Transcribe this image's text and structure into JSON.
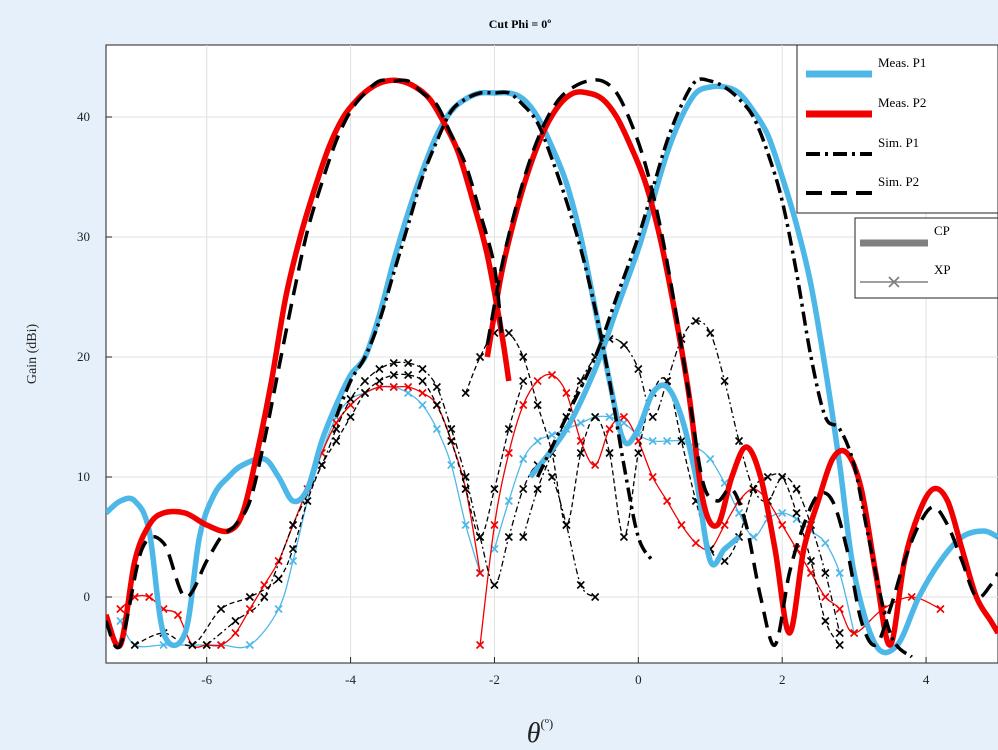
{
  "chart_data": {
    "type": "line",
    "title": "Cut Phi = 0º",
    "xlabel": "θ",
    "xlabel_unit": "(º)",
    "ylabel": "Gain (dBi)",
    "xlim": [
      -7.4,
      5
    ],
    "ylim": [
      -5.5,
      46
    ],
    "x_ticks": [
      -6,
      -4,
      -2,
      0,
      2,
      4
    ],
    "y_ticks": [
      0,
      10,
      20,
      30,
      40
    ],
    "grid": true,
    "legend_placement": "top-right",
    "legend": [
      "Meas. P1",
      "Meas. P2",
      "Sim. P1",
      "Sim. P2"
    ],
    "legend2": [
      "CP",
      "XP"
    ],
    "colors": {
      "meas_p1": "#4db8e8",
      "meas_p2": "#f20000",
      "sim": "#000000",
      "legend2": "#808080",
      "background": "#e6f0fa",
      "axes_bg": "#ffffff",
      "grid": "#e0e0e0"
    },
    "series": [
      {
        "name": "Meas. P1",
        "beam": 1,
        "kind": "CP",
        "color": "#4db8e8",
        "style": "solid",
        "x": [
          -7.4,
          -7.2,
          -7.0,
          -6.8,
          -6.6,
          -6.3,
          -6.1,
          -5.9,
          -5.7,
          -5.5,
          -5.2,
          -5.0,
          -4.8,
          -4.6,
          -4.4,
          -4.2,
          -4.0,
          -3.8,
          -3.6,
          -3.4,
          -3.2,
          -3.0,
          -2.8,
          -2.6,
          -2.4,
          -2.2,
          -2.0,
          -1.8,
          -1.6,
          -1.4,
          -1.2,
          -1.0,
          -0.8,
          -0.6,
          -0.4,
          -0.2,
          0.0,
          0.2,
          0.4,
          0.6,
          0.8,
          1.0,
          1.2,
          1.4
        ],
        "y": [
          7.0,
          8.0,
          8.0,
          5.5,
          -3.0,
          -3.0,
          5.0,
          8.5,
          10.0,
          11.0,
          11.5,
          10.0,
          8.0,
          9.0,
          13.0,
          16.0,
          18.5,
          20.0,
          23.5,
          28.0,
          32.0,
          35.5,
          38.5,
          40.5,
          41.5,
          42.0,
          42.0,
          42.0,
          41.5,
          40.0,
          37.5,
          34.5,
          30.0,
          24.0,
          18.0,
          13.0,
          14.0,
          17.0,
          17.5,
          15.0,
          10.0,
          3.0,
          4.0,
          5.0
        ]
      },
      {
        "name": "Meas. P1",
        "beam": 2,
        "kind": "CP",
        "color": "#4db8e8",
        "style": "solid",
        "x": [
          -1.5,
          -1.0,
          -0.6,
          -0.3,
          0.0,
          0.2,
          0.4,
          0.6,
          0.8,
          1.0,
          1.2,
          1.4,
          1.6,
          1.8,
          2.0,
          2.2,
          2.4,
          2.6,
          2.8,
          3.0,
          3.3,
          3.6,
          3.9,
          4.2,
          4.5,
          4.8,
          5.0
        ],
        "y": [
          10.0,
          14.0,
          19.0,
          24.0,
          29.0,
          33.0,
          37.0,
          40.0,
          42.0,
          42.5,
          42.5,
          42.0,
          40.5,
          38.5,
          35.0,
          31.0,
          26.0,
          19.0,
          11.0,
          2.0,
          -4.0,
          -4.0,
          0.0,
          3.0,
          5.0,
          5.5,
          5.0
        ]
      },
      {
        "name": "Meas. P2",
        "beam": 1,
        "kind": "CP",
        "color": "#f20000",
        "style": "solid",
        "x": [
          -7.4,
          -7.2,
          -7.0,
          -6.8,
          -6.6,
          -6.3,
          -6.0,
          -5.7,
          -5.5,
          -5.3,
          -5.1,
          -4.9,
          -4.7,
          -4.5,
          -4.3,
          -4.1,
          -3.9,
          -3.7,
          -3.5,
          -3.3,
          -3.1,
          -2.9,
          -2.7,
          -2.5,
          -2.3,
          -2.1,
          -1.9,
          -1.8
        ],
        "y": [
          -1.5,
          -4.0,
          3.0,
          6.0,
          7.0,
          7.0,
          6.0,
          5.5,
          7.0,
          12.0,
          18.0,
          25.0,
          30.0,
          34.0,
          37.5,
          40.0,
          41.5,
          42.5,
          43.0,
          43.0,
          42.5,
          41.5,
          39.5,
          37.0,
          33.0,
          28.5,
          22.0,
          18.0
        ]
      },
      {
        "name": "Meas. P2",
        "beam": 2,
        "kind": "CP",
        "color": "#f20000",
        "style": "solid",
        "x": [
          -2.1,
          -1.9,
          -1.7,
          -1.5,
          -1.3,
          -1.1,
          -0.9,
          -0.7,
          -0.5,
          -0.3,
          -0.1,
          0.1,
          0.3,
          0.5,
          0.7,
          0.9,
          1.1,
          1.3,
          1.5,
          1.7,
          1.9,
          2.1,
          2.3,
          2.5,
          2.7,
          2.9,
          3.1,
          3.3,
          3.5,
          3.7,
          3.9,
          4.1,
          4.3,
          4.5,
          4.7,
          4.9,
          5.0
        ],
        "y": [
          20.0,
          27.0,
          32.0,
          36.0,
          39.0,
          41.0,
          42.0,
          42.0,
          41.5,
          40.0,
          37.5,
          34.5,
          30.0,
          24.0,
          17.0,
          8.0,
          6.0,
          10.0,
          12.5,
          10.0,
          4.0,
          -3.0,
          4.0,
          8.0,
          11.5,
          12.0,
          9.0,
          2.0,
          -4.0,
          3.0,
          7.0,
          9.0,
          8.0,
          4.0,
          0.0,
          -2.0,
          -3.0
        ]
      },
      {
        "name": "Sim. P1",
        "beam": 1,
        "kind": "CP",
        "color": "#000000",
        "style": "dashdot",
        "x": [
          -4.2,
          -4.0,
          -3.8,
          -3.6,
          -3.4,
          -3.2,
          -3.0,
          -2.8,
          -2.6,
          -2.4,
          -2.2,
          -2.0,
          -1.8,
          -1.6,
          -1.4,
          -1.2,
          -1.0,
          -0.8,
          -0.6,
          -0.4,
          -0.2,
          0.0,
          0.2
        ],
        "y": [
          15.0,
          18.0,
          20.0,
          23.0,
          27.0,
          31.0,
          35.0,
          38.0,
          40.5,
          41.5,
          42.0,
          42.0,
          42.0,
          41.0,
          39.5,
          36.5,
          33.0,
          29.0,
          24.0,
          18.0,
          11.0,
          5.0,
          3.0
        ]
      },
      {
        "name": "Sim. P1",
        "beam": 2,
        "kind": "CP",
        "color": "#000000",
        "style": "dashdot",
        "x": [
          -1.4,
          -1.0,
          -0.6,
          -0.3,
          0.0,
          0.2,
          0.4,
          0.6,
          0.8,
          1.0,
          1.2,
          1.4,
          1.6,
          1.8,
          2.0,
          2.2,
          2.4,
          2.6,
          2.8,
          3.0,
          3.2,
          3.5,
          3.8
        ],
        "y": [
          10.0,
          15.0,
          20.0,
          25.0,
          30.0,
          34.0,
          38.0,
          41.0,
          43.0,
          43.0,
          42.5,
          41.5,
          40.0,
          37.0,
          33.0,
          27.0,
          20.0,
          15.0,
          14.0,
          11.0,
          5.0,
          -3.0,
          -5.0
        ]
      },
      {
        "name": "Sim. P2",
        "beam": 1,
        "kind": "CP",
        "color": "#000000",
        "style": "dashed",
        "x": [
          -7.4,
          -7.2,
          -6.9,
          -6.6,
          -6.3,
          -6.0,
          -5.8,
          -5.6,
          -5.4,
          -5.2,
          -5.0,
          -4.8,
          -4.6,
          -4.4,
          -4.2,
          -4.0,
          -3.8,
          -3.6,
          -3.4,
          -3.2,
          -3.0,
          -2.8,
          -2.6,
          -2.4,
          -2.2,
          -2.0,
          -1.9
        ],
        "y": [
          -2.0,
          -4.0,
          4.0,
          4.5,
          0.0,
          3.0,
          5.0,
          6.0,
          8.0,
          13.0,
          19.0,
          25.0,
          30.5,
          34.5,
          38.0,
          40.5,
          42.0,
          43.0,
          43.0,
          43.0,
          42.0,
          41.0,
          38.5,
          36.0,
          32.0,
          27.5,
          22.0
        ]
      },
      {
        "name": "Sim. P2",
        "beam": 2,
        "kind": "CP",
        "color": "#000000",
        "style": "dashed",
        "x": [
          -2.1,
          -1.9,
          -1.7,
          -1.5,
          -1.3,
          -1.1,
          -0.9,
          -0.7,
          -0.5,
          -0.3,
          -0.1,
          0.1,
          0.3,
          0.5,
          0.7,
          0.9,
          1.1,
          1.3,
          1.5,
          1.7,
          1.9,
          2.1,
          2.3,
          2.5,
          2.7,
          2.9,
          3.1,
          3.3,
          3.5,
          3.7,
          3.9,
          4.1,
          4.3,
          4.5,
          4.7,
          4.9,
          5.0
        ],
        "y": [
          21.0,
          27.5,
          32.5,
          36.5,
          39.5,
          41.5,
          42.5,
          43.0,
          43.0,
          42.0,
          39.5,
          36.0,
          31.0,
          24.5,
          17.0,
          9.5,
          8.0,
          9.0,
          6.0,
          0.0,
          -4.0,
          2.0,
          6.0,
          8.5,
          8.0,
          4.0,
          -2.0,
          -4.0,
          -1.0,
          3.0,
          6.0,
          7.5,
          6.0,
          3.0,
          0.0,
          1.0,
          2.0
        ]
      },
      {
        "name": "Meas. P1",
        "beam": 1,
        "kind": "XP",
        "color": "#4db8e8",
        "style": "thin-x",
        "x": [
          -7.2,
          -7.0,
          -6.6,
          -6.2,
          -5.8,
          -5.4,
          -5.0,
          -4.8,
          -4.6,
          -4.4,
          -4.2,
          -4.0,
          -3.8,
          -3.6,
          -3.4,
          -3.2,
          -3.0,
          -2.8,
          -2.6,
          -2.4,
          -2.2
        ],
        "y": [
          -2.0,
          -4.0,
          -4.0,
          -4.0,
          -4.0,
          -4.0,
          -1.0,
          3.0,
          8.0,
          12.0,
          15.0,
          16.5,
          17.0,
          17.5,
          17.5,
          17.0,
          16.0,
          14.0,
          11.0,
          6.0,
          2.0
        ]
      },
      {
        "name": "Meas. P1",
        "beam": 2,
        "kind": "XP",
        "color": "#4db8e8",
        "style": "thin-x",
        "x": [
          -2.0,
          -1.8,
          -1.6,
          -1.4,
          -1.2,
          -1.0,
          -0.8,
          -0.6,
          -0.4,
          -0.2,
          0.0,
          0.2,
          0.4,
          0.6,
          0.8,
          1.0,
          1.2,
          1.4,
          1.6,
          1.8,
          2.0,
          2.2,
          2.4,
          2.6,
          2.8,
          3.0
        ],
        "y": [
          4.0,
          8.0,
          11.5,
          13.0,
          13.5,
          14.0,
          14.5,
          15.0,
          15.0,
          14.5,
          13.5,
          13.0,
          13.0,
          13.0,
          12.5,
          11.5,
          9.5,
          7.0,
          5.0,
          6.5,
          7.0,
          6.5,
          5.5,
          4.5,
          2.0,
          -3.0
        ]
      },
      {
        "name": "Meas. P2",
        "beam": 1,
        "kind": "XP",
        "color": "#f20000",
        "style": "thin-x",
        "x": [
          -7.2,
          -7.0,
          -6.8,
          -6.6,
          -6.4,
          -6.2,
          -6.0,
          -5.8,
          -5.6,
          -5.4,
          -5.2,
          -5.0,
          -4.8,
          -4.6,
          -4.4,
          -4.2,
          -4.0,
          -3.8,
          -3.6,
          -3.4,
          -3.2,
          -3.0,
          -2.8,
          -2.6,
          -2.4,
          -2.2
        ],
        "y": [
          -1.0,
          0.0,
          0.0,
          -1.0,
          -1.5,
          -4.0,
          -4.0,
          -4.0,
          -3.0,
          -1.0,
          1.0,
          3.0,
          6.0,
          9.0,
          12.0,
          14.5,
          16.0,
          17.0,
          17.5,
          17.5,
          17.5,
          17.0,
          16.0,
          13.0,
          9.0,
          2.0
        ]
      },
      {
        "name": "Meas. P2",
        "beam": 2,
        "kind": "XP",
        "color": "#f20000",
        "style": "thin-x",
        "x": [
          -2.2,
          -2.0,
          -1.8,
          -1.6,
          -1.4,
          -1.2,
          -1.0,
          -0.8,
          -0.6,
          -0.4,
          -0.2,
          0.0,
          0.2,
          0.4,
          0.6,
          0.8,
          1.0,
          1.2,
          1.4,
          1.6,
          1.8,
          2.0,
          2.2,
          2.4,
          2.6,
          2.8,
          3.0,
          3.4,
          3.8,
          4.2
        ],
        "y": [
          -4.0,
          6.0,
          12.0,
          16.0,
          18.0,
          18.5,
          17.0,
          13.0,
          11.0,
          14.0,
          15.0,
          13.0,
          10.0,
          8.0,
          6.0,
          4.5,
          4.0,
          6.0,
          8.0,
          9.0,
          8.0,
          6.0,
          4.0,
          2.0,
          0.0,
          -1.0,
          -3.0,
          -1.0,
          0.0,
          -1.0
        ]
      },
      {
        "name": "Sim. P1",
        "beam": 1,
        "kind": "XP",
        "color": "#000000",
        "style": "thin-dashdot-x",
        "x": [
          -6.0,
          -5.6,
          -5.2,
          -4.8,
          -4.4,
          -4.2,
          -4.0,
          -3.8,
          -3.6,
          -3.4,
          -3.2,
          -3.0,
          -2.8,
          -2.6,
          -2.4,
          -2.2,
          -2.0,
          -1.8,
          -1.6,
          -1.4,
          -1.2,
          -1.0,
          -0.8,
          -0.6
        ],
        "y": [
          -4.0,
          -2.0,
          0.0,
          6.0,
          11.0,
          14.0,
          16.5,
          18.0,
          19.0,
          19.5,
          19.5,
          19.0,
          17.5,
          14.0,
          10.0,
          5.0,
          1.0,
          5.0,
          9.0,
          11.0,
          10.0,
          6.0,
          1.0,
          0.0
        ]
      },
      {
        "name": "Sim. P1",
        "beam": 2,
        "kind": "XP",
        "color": "#000000",
        "style": "thin-dashdot-x",
        "x": [
          -1.6,
          -1.4,
          -1.2,
          -1.0,
          -0.8,
          -0.6,
          -0.4,
          -0.2,
          0.0,
          0.2,
          0.4,
          0.6,
          0.8,
          1.0,
          1.2,
          1.4,
          1.6,
          1.8,
          2.0,
          2.2,
          2.4,
          2.6,
          2.8
        ],
        "y": [
          5.0,
          9.0,
          12.0,
          15.0,
          18.0,
          20.0,
          21.5,
          21.0,
          19.0,
          15.0,
          18.0,
          21.5,
          23.0,
          22.0,
          18.0,
          13.0,
          9.0,
          8.0,
          10.0,
          9.0,
          6.0,
          2.0,
          -3.0
        ]
      },
      {
        "name": "Sim. P2",
        "beam": 1,
        "kind": "XP",
        "color": "#000000",
        "style": "thin-dashed-x",
        "x": [
          -7.0,
          -6.6,
          -6.2,
          -5.8,
          -5.4,
          -5.0,
          -4.8,
          -4.6,
          -4.4,
          -4.2,
          -4.0,
          -3.8,
          -3.6,
          -3.4,
          -3.2,
          -3.0,
          -2.8,
          -2.6,
          -2.4,
          -2.2,
          -2.0,
          -1.8,
          -1.6
        ],
        "y": [
          -4.0,
          -3.0,
          -4.0,
          -1.0,
          0.0,
          1.5,
          4.0,
          8.0,
          11.0,
          13.0,
          15.0,
          17.0,
          18.0,
          18.5,
          18.5,
          18.0,
          16.0,
          13.0,
          9.0,
          5.0,
          9.0,
          14.0,
          18.0
        ]
      },
      {
        "name": "Sim. P2",
        "beam": 2,
        "kind": "XP",
        "color": "#000000",
        "style": "thin-dashed-x",
        "x": [
          -2.4,
          -2.2,
          -2.0,
          -1.8,
          -1.6,
          -1.4,
          -1.2,
          -1.0,
          -0.8,
          -0.6,
          -0.4,
          -0.2,
          0.0,
          0.2,
          0.4,
          0.6,
          0.8,
          1.0,
          1.2,
          1.4,
          1.6,
          1.8,
          2.0,
          2.2,
          2.4,
          2.6,
          2.8
        ],
        "y": [
          17.0,
          20.0,
          22.0,
          22.0,
          20.0,
          16.0,
          12.0,
          6.0,
          12.0,
          15.0,
          12.0,
          5.0,
          12.0,
          17.0,
          18.0,
          13.0,
          8.0,
          4.0,
          3.0,
          5.0,
          9.0,
          10.0,
          10.0,
          7.0,
          3.0,
          -2.0,
          -4.0
        ]
      }
    ]
  }
}
